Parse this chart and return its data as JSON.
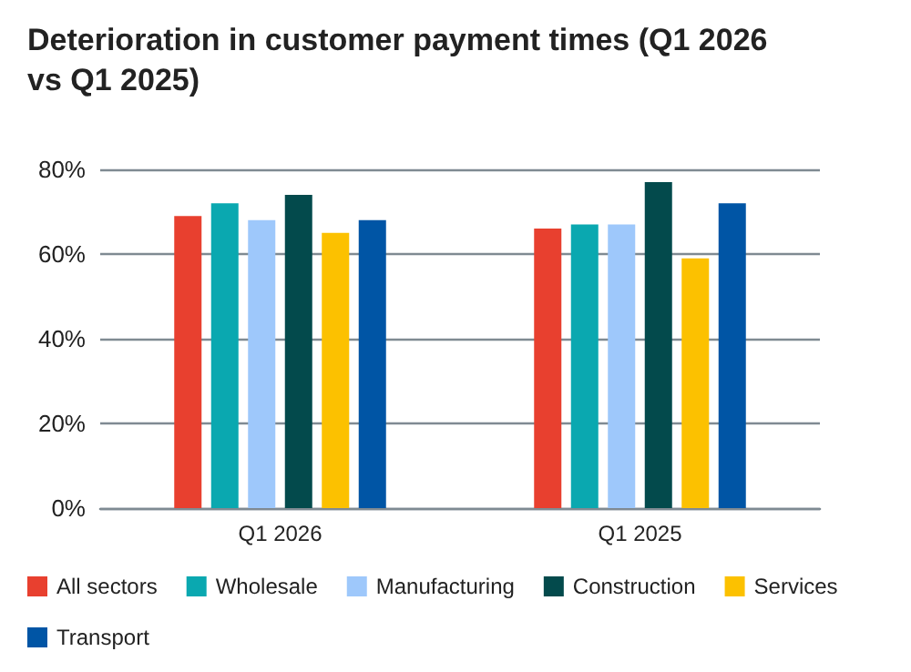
{
  "chart_data": {
    "type": "bar",
    "title": "Deterioration in customer payment times (Q1 2026 vs Q1 2025)",
    "categories": [
      "Q1 2026",
      "Q1 2025"
    ],
    "series": [
      {
        "name": "All sectors",
        "color": "#e8402f",
        "values": [
          69,
          66
        ]
      },
      {
        "name": "Wholesale",
        "color": "#0aa8b0",
        "values": [
          72,
          67
        ]
      },
      {
        "name": "Manufacturing",
        "color": "#9ec8fb",
        "values": [
          68,
          67
        ]
      },
      {
        "name": "Construction",
        "color": "#034a4c",
        "values": [
          74,
          77
        ]
      },
      {
        "name": "Services",
        "color": "#fcc100",
        "values": [
          65,
          59
        ]
      },
      {
        "name": "Transport",
        "color": "#0055a5",
        "values": [
          68,
          72
        ]
      }
    ],
    "ylim": [
      0,
      80
    ],
    "yticks": [
      {
        "value": 0,
        "label": "0%"
      },
      {
        "value": 20,
        "label": "20%"
      },
      {
        "value": 40,
        "label": "40%"
      },
      {
        "value": 60,
        "label": "60%"
      },
      {
        "value": 80,
        "label": "80%"
      }
    ],
    "grid": "y",
    "legend": "bottom"
  }
}
